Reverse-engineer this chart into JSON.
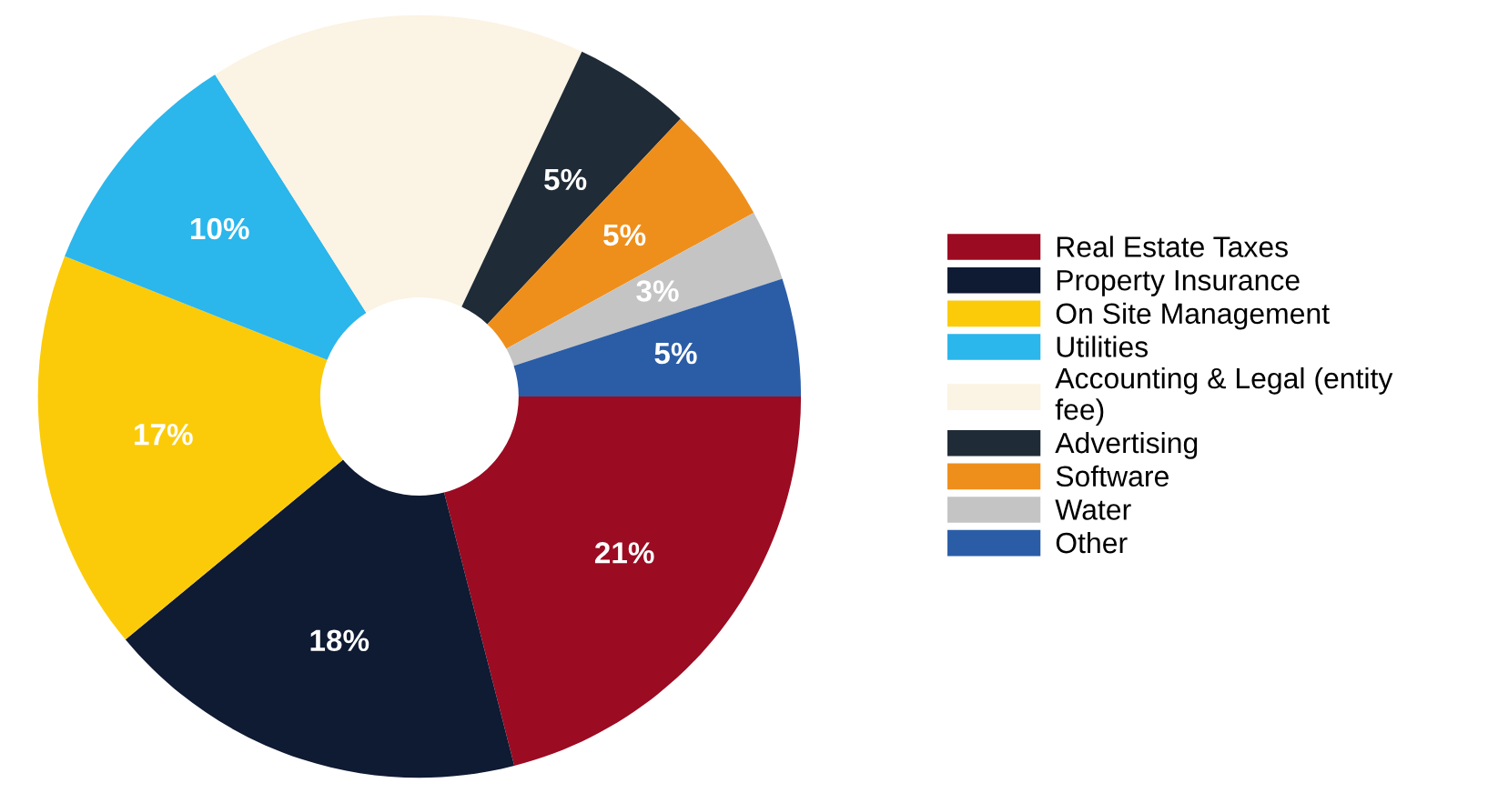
{
  "chart_data": {
    "type": "donut",
    "categories": [
      "Real Estate Taxes",
      "Property Insurance",
      "On Site Management",
      "Utilities",
      "Accounting & Legal (entity\nfee)",
      "Advertising",
      "Software",
      "Water",
      "Other"
    ],
    "values": [
      21,
      18,
      17,
      10,
      16,
      5,
      5,
      3,
      5
    ],
    "value_labels": [
      "21%",
      "18%",
      "17%",
      "10%",
      null,
      "5%",
      "5%",
      "3%",
      "5%"
    ],
    "colors": [
      "#9b0b22",
      "#0f1a33",
      "#fbcb0a",
      "#2bb6ec",
      "#fbf3e3",
      "#1f2b36",
      "#ef8f1b",
      "#c4c4c4",
      "#2b5da6"
    ],
    "legend": "right"
  }
}
